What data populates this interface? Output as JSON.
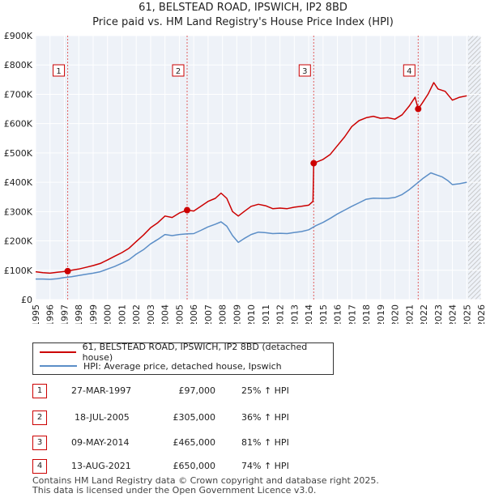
{
  "chart_data": {
    "type": "line",
    "title": "61, BELSTEAD ROAD, IPSWICH, IP2 8BD",
    "subtitle": "Price paid vs. HM Land Registry's House Price Index (HPI)",
    "xlim": [
      1995,
      2026
    ],
    "ylim": [
      0,
      900000
    ],
    "y_ticks": [
      0,
      100000,
      200000,
      300000,
      400000,
      500000,
      600000,
      700000,
      800000,
      900000
    ],
    "y_tick_labels": [
      "£0",
      "£100K",
      "£200K",
      "£300K",
      "£400K",
      "£500K",
      "£600K",
      "£700K",
      "£800K",
      "£900K"
    ],
    "x_ticks": [
      1995,
      1996,
      1997,
      1998,
      1999,
      2000,
      2001,
      2002,
      2003,
      2004,
      2005,
      2006,
      2007,
      2008,
      2009,
      2010,
      2011,
      2012,
      2013,
      2014,
      2015,
      2016,
      2017,
      2018,
      2019,
      2020,
      2021,
      2022,
      2023,
      2024,
      2025,
      2026
    ],
    "x_tick_labels": [
      "1995",
      "1996",
      "1997",
      "1998",
      "1999",
      "2000",
      "2001",
      "2002",
      "2003",
      "2004",
      "2005",
      "2006",
      "2007",
      "2008",
      "2009",
      "2010",
      "2011",
      "2012",
      "2013",
      "2014",
      "2015",
      "2016",
      "2017",
      "2018",
      "2019",
      "2020",
      "2021",
      "2022",
      "2023",
      "2024",
      "2025",
      "2026"
    ],
    "grid": true,
    "forecast_from": 2025.1,
    "series": [
      {
        "name": "61, BELSTEAD ROAD, IPSWICH, IP2 8BD (detached house)",
        "color": "#cc0000",
        "x": [
          1995.0,
          1995.5,
          1996.0,
          1996.5,
          1997.23,
          1997.5,
          1998.0,
          1998.5,
          1999.0,
          1999.5,
          2000.0,
          2000.5,
          2001.0,
          2001.5,
          2002.0,
          2002.5,
          2003.0,
          2003.5,
          2004.0,
          2004.5,
          2005.0,
          2005.54,
          2006.0,
          2006.5,
          2007.0,
          2007.5,
          2007.9,
          2008.3,
          2008.7,
          2009.1,
          2009.5,
          2010.0,
          2010.5,
          2011.0,
          2011.5,
          2012.0,
          2012.5,
          2013.0,
          2013.5,
          2014.0,
          2014.3,
          2014.35,
          2015.0,
          2015.5,
          2016.0,
          2016.5,
          2017.0,
          2017.5,
          2018.0,
          2018.5,
          2019.0,
          2019.5,
          2020.0,
          2020.5,
          2021.0,
          2021.4,
          2021.62,
          2021.9,
          2022.3,
          2022.7,
          2023.0,
          2023.5,
          2024.0,
          2024.5,
          2025.0
        ],
        "values": [
          95000,
          92000,
          90000,
          93000,
          97000,
          100000,
          104000,
          110000,
          116000,
          123000,
          135000,
          148000,
          160000,
          175000,
          198000,
          220000,
          245000,
          262000,
          285000,
          280000,
          295000,
          305000,
          302000,
          318000,
          335000,
          345000,
          363000,
          345000,
          300000,
          285000,
          300000,
          318000,
          325000,
          320000,
          310000,
          312000,
          310000,
          315000,
          318000,
          322000,
          335000,
          465000,
          478000,
          495000,
          525000,
          555000,
          590000,
          610000,
          620000,
          625000,
          618000,
          620000,
          615000,
          630000,
          660000,
          690000,
          650000,
          670000,
          700000,
          740000,
          718000,
          710000,
          680000,
          690000,
          695000
        ]
      },
      {
        "name": "HPI: Average price, detached house, Ipswich",
        "color": "#5b8ec7",
        "x": [
          1995.0,
          1995.5,
          1996.0,
          1996.5,
          1997.0,
          1997.5,
          1998.0,
          1998.5,
          1999.0,
          1999.5,
          2000.0,
          2000.5,
          2001.0,
          2001.5,
          2002.0,
          2002.5,
          2003.0,
          2003.5,
          2004.0,
          2004.5,
          2005.0,
          2005.5,
          2006.0,
          2006.5,
          2007.0,
          2007.5,
          2007.9,
          2008.3,
          2008.7,
          2009.1,
          2009.5,
          2010.0,
          2010.5,
          2011.0,
          2011.5,
          2012.0,
          2012.5,
          2013.0,
          2013.5,
          2014.0,
          2014.5,
          2015.0,
          2015.5,
          2016.0,
          2016.5,
          2017.0,
          2017.5,
          2018.0,
          2018.5,
          2019.0,
          2019.5,
          2020.0,
          2020.5,
          2021.0,
          2021.5,
          2022.0,
          2022.5,
          2022.9,
          2023.3,
          2023.7,
          2024.0,
          2024.5,
          2025.0
        ],
        "values": [
          70000,
          70000,
          69000,
          71000,
          75000,
          78000,
          82000,
          86000,
          90000,
          95000,
          104000,
          113000,
          124000,
          136000,
          155000,
          170000,
          190000,
          205000,
          222000,
          218000,
          222000,
          224000,
          225000,
          236000,
          248000,
          257000,
          265000,
          250000,
          218000,
          195000,
          208000,
          222000,
          230000,
          228000,
          225000,
          226000,
          225000,
          229000,
          232000,
          238000,
          252000,
          263000,
          277000,
          292000,
          305000,
          318000,
          330000,
          342000,
          346000,
          345000,
          345000,
          348000,
          358000,
          375000,
          395000,
          415000,
          432000,
          425000,
          418000,
          405000,
          392000,
          395000,
          400000
        ]
      }
    ],
    "transactions": [
      {
        "num": "1",
        "x": 1997.23,
        "y": 97000,
        "date": "27-MAR-1997",
        "price": "£97,000",
        "hpi": "25% ↑ HPI"
      },
      {
        "num": "2",
        "x": 2005.54,
        "y": 305000,
        "date": "18-JUL-2005",
        "price": "£305,000",
        "hpi": "36% ↑ HPI"
      },
      {
        "num": "3",
        "x": 2014.35,
        "y": 465000,
        "date": "09-MAY-2014",
        "price": "£465,000",
        "hpi": "81% ↑ HPI"
      },
      {
        "num": "4",
        "x": 2021.62,
        "y": 650000,
        "date": "13-AUG-2021",
        "price": "£650,000",
        "hpi": "74% ↑ HPI"
      }
    ]
  },
  "legend": {
    "property_label": "61, BELSTEAD ROAD, IPSWICH, IP2 8BD (detached house)",
    "hpi_label": "HPI: Average price, detached house, Ipswich",
    "property_color": "#cc0000",
    "hpi_color": "#5b8ec7"
  },
  "footer": {
    "line1": "Contains HM Land Registry data © Crown copyright and database right 2025.",
    "line2": "This data is licensed under the Open Government Licence v3.0."
  }
}
